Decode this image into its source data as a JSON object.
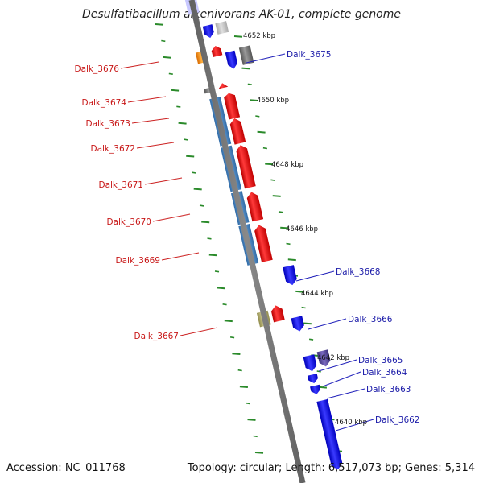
{
  "title": "Desulfatibacillum alkenivorans AK-01, complete genome",
  "accession_label": "Accession: NC_011768",
  "summary_label": "Topology: circular; Length: 6,517,073 bp; Genes: 5,314",
  "colors": {
    "backbone": "#888888",
    "tick": "#2a8a2a",
    "forward_gene": "#ee1111",
    "reverse_gene": "#1a1aee",
    "feature_blue": "#4a86c0",
    "label_red": "#c81818",
    "label_blue": "#1a1aa8"
  },
  "kbp_ticks": [
    "4652 kbp",
    "4650 kbp",
    "4648 kbp",
    "4646 kbp",
    "4644 kbp",
    "4642 kbp",
    "4640 kbp"
  ],
  "genes_left": [
    {
      "name": "Dalk_3676"
    },
    {
      "name": "Dalk_3674"
    },
    {
      "name": "Dalk_3673"
    },
    {
      "name": "Dalk_3672"
    },
    {
      "name": "Dalk_3671"
    },
    {
      "name": "Dalk_3670"
    },
    {
      "name": "Dalk_3669"
    },
    {
      "name": "Dalk_3667"
    }
  ],
  "genes_right": [
    {
      "name": "Dalk_3675"
    },
    {
      "name": "Dalk_3668"
    },
    {
      "name": "Dalk_3666"
    },
    {
      "name": "Dalk_3665"
    },
    {
      "name": "Dalk_3664"
    },
    {
      "name": "Dalk_3663"
    },
    {
      "name": "Dalk_3662"
    }
  ]
}
